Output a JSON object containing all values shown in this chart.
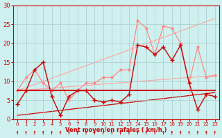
{
  "bg_color": "#cef0ee",
  "grid_color": "#aacccc",
  "xlabel": "Vent moyen/en rafales ( km/h )",
  "xlabel_color": "#cc0000",
  "tick_color": "#cc0000",
  "ylim": [
    0,
    30
  ],
  "xlim": [
    -0.5,
    23.5
  ],
  "yticks": [
    0,
    5,
    10,
    15,
    20,
    25,
    30
  ],
  "xticks": [
    0,
    1,
    2,
    3,
    4,
    5,
    6,
    7,
    8,
    9,
    10,
    11,
    12,
    13,
    14,
    15,
    16,
    17,
    18,
    19,
    20,
    21,
    22,
    23
  ],
  "series": [
    {
      "x": [
        0,
        23
      ],
      "y": [
        7.5,
        26.5
      ],
      "color": "#ffaaaa",
      "lw": 0.9,
      "marker": null,
      "ms": 0,
      "zorder": 1
    },
    {
      "x": [
        0,
        23
      ],
      "y": [
        7.5,
        11.5
      ],
      "color": "#ffaaaa",
      "lw": 0.9,
      "marker": null,
      "ms": 0,
      "zorder": 1
    },
    {
      "x": [
        0,
        1,
        2,
        3,
        4,
        5,
        6,
        7,
        8,
        9,
        10,
        11,
        12,
        13,
        14,
        15,
        16,
        17,
        18,
        19,
        20,
        21,
        22,
        23
      ],
      "y": [
        7.5,
        11,
        13,
        9.5,
        7.5,
        9.5,
        5,
        7.5,
        9.5,
        9.5,
        11,
        11,
        13,
        13,
        26,
        24,
        17,
        24.5,
        24,
        20,
        9.5,
        19,
        11,
        11.5
      ],
      "color": "#ff8888",
      "lw": 0.9,
      "marker": "o",
      "ms": 2.0,
      "zorder": 2
    },
    {
      "x": [
        0,
        1,
        2,
        3,
        4,
        5,
        6,
        7,
        8,
        9,
        10,
        11,
        12,
        13,
        14,
        15,
        16,
        17,
        18,
        19,
        20,
        21,
        22,
        23
      ],
      "y": [
        7.5,
        7.5,
        7.5,
        7.5,
        7.5,
        7.5,
        7.5,
        7.5,
        7.5,
        7.5,
        7.5,
        7.5,
        7.5,
        7.5,
        7.5,
        7.5,
        7.5,
        7.5,
        7.5,
        7.5,
        7.5,
        7.5,
        7.5,
        7.5
      ],
      "color": "#cc0000",
      "lw": 1.5,
      "marker": null,
      "ms": 0,
      "zorder": 2
    },
    {
      "x": [
        0,
        1,
        2,
        3,
        4,
        5,
        6,
        7,
        8,
        9,
        10,
        11,
        12,
        13,
        14,
        15,
        16,
        17,
        18,
        19,
        20,
        21,
        22,
        23
      ],
      "y": [
        4,
        7.5,
        13,
        15,
        6,
        1,
        6,
        7.5,
        7.5,
        5,
        4.5,
        5,
        4.5,
        6.5,
        19.5,
        19,
        17,
        19,
        15.5,
        19.5,
        9.5,
        2.5,
        6.5,
        6
      ],
      "color": "#cc0000",
      "lw": 1.0,
      "marker": "+",
      "ms": 4,
      "zorder": 3
    },
    {
      "x": [
        0,
        23
      ],
      "y": [
        1,
        7
      ],
      "color": "#cc0000",
      "lw": 0.9,
      "marker": null,
      "ms": 0,
      "zorder": 1
    }
  ],
  "arrow_rotations": [
    225,
    225,
    225,
    225,
    225,
    135,
    225,
    225,
    180,
    180,
    180,
    180,
    180,
    135,
    90,
    90,
    90,
    90,
    90,
    90,
    90,
    90,
    90,
    90
  ]
}
